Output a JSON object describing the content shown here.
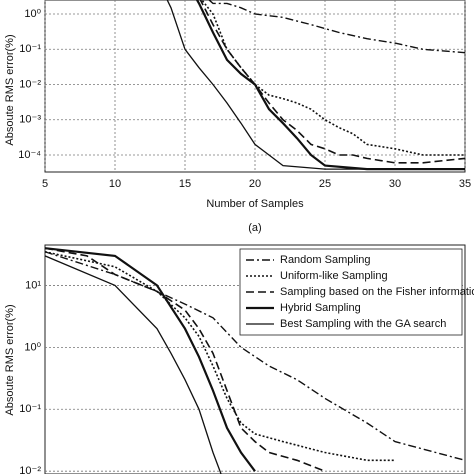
{
  "chart_data": [
    {
      "type": "line",
      "log_y": true,
      "grid": true,
      "x_label": "Number of Samples",
      "y_label": "Absoute RMS error(%)",
      "caption": "(a)",
      "xlim": [
        5,
        35
      ],
      "xticks": [
        5,
        10,
        15,
        20,
        25,
        30,
        35
      ],
      "ylim": [
        3.3e-05,
        2.5
      ],
      "yticks": [
        {
          "value": 0.0001,
          "label": "10⁻⁴"
        },
        {
          "value": 0.001,
          "label": "10⁻³"
        },
        {
          "value": 0.01,
          "label": "10⁻²"
        },
        {
          "value": 0.1,
          "label": "10⁻¹"
        },
        {
          "value": 1,
          "label": "10⁰"
        }
      ],
      "series": [
        {
          "color": "#111",
          "style": "dashdot",
          "x": [
            15,
            17,
            18,
            19,
            20,
            22,
            24,
            26,
            28,
            30,
            32,
            35
          ],
          "values": [
            10,
            2,
            2,
            1.5,
            1,
            0.8,
            0.5,
            0.3,
            0.2,
            0.15,
            0.1,
            0.08
          ]
        },
        {
          "color": "#111",
          "style": "dotted",
          "x": [
            15,
            17,
            18,
            19,
            20,
            21,
            22,
            23,
            24,
            25,
            26,
            27,
            28,
            30,
            32,
            35
          ],
          "values": [
            10,
            1,
            0.1,
            0.03,
            0.01,
            0.005,
            0.004,
            0.003,
            0.002,
            0.001,
            0.0006,
            0.0004,
            0.0002,
            0.00015,
            0.0001,
            0.0001
          ]
        },
        {
          "color": "#111",
          "style": "dashed",
          "x": [
            15,
            16,
            17,
            18,
            19,
            20,
            21,
            22,
            23,
            24,
            25,
            26,
            27,
            28,
            30,
            32,
            35
          ],
          "values": [
            10,
            3,
            0.5,
            0.1,
            0.03,
            0.01,
            0.003,
            0.001,
            0.0005,
            0.0002,
            0.00015,
            0.0001,
            0.0001,
            8e-05,
            6e-05,
            6e-05,
            8e-05
          ]
        },
        {
          "color": "#111",
          "style": "thick",
          "x": [
            15,
            16,
            17,
            18,
            19,
            20,
            21,
            22,
            23,
            24,
            25,
            28,
            32,
            35
          ],
          "values": [
            10,
            2,
            0.3,
            0.05,
            0.02,
            0.01,
            0.002,
            0.0008,
            0.0003,
            0.0001,
            5e-05,
            4e-05,
            4e-05,
            4e-05
          ]
        },
        {
          "color": "#111",
          "style": "solid",
          "x": [
            13,
            14,
            15,
            16,
            17,
            18,
            19,
            20,
            21,
            22,
            25,
            30,
            35
          ],
          "values": [
            10,
            1.5,
            0.1,
            0.03,
            0.01,
            0.003,
            0.0008,
            0.0002,
            0.0001,
            5e-05,
            4e-05,
            4e-05,
            4e-05
          ]
        }
      ]
    },
    {
      "type": "line",
      "log_y": true,
      "grid": true,
      "legend": "upper right",
      "y_label": "Absoute RMS error(%)",
      "xlim": [
        5,
        35
      ],
      "ylim": [
        0.009,
        45
      ],
      "yticks": [
        {
          "value": 0.01,
          "label": "10⁻²"
        },
        {
          "value": 0.1,
          "label": "10⁻¹"
        },
        {
          "value": 1,
          "label": "10⁰"
        },
        {
          "value": 10,
          "label": "10¹"
        }
      ],
      "series": [
        {
          "name": "Random Sampling",
          "color": "#111",
          "style": "dashdot",
          "x": [
            5,
            10,
            13,
            15,
            17,
            19,
            21,
            23,
            25,
            28,
            30,
            35
          ],
          "values": [
            35,
            15,
            8,
            5,
            3,
            1,
            0.5,
            0.3,
            0.15,
            0.06,
            0.03,
            0.015
          ]
        },
        {
          "name": "Uniform-like Sampling",
          "color": "#111",
          "style": "dotted",
          "x": [
            5,
            10,
            13,
            15,
            16,
            17,
            18,
            19,
            20,
            22,
            25,
            28,
            30
          ],
          "values": [
            35,
            20,
            8,
            3,
            1.5,
            0.5,
            0.15,
            0.06,
            0.04,
            0.03,
            0.02,
            0.015,
            0.015
          ]
        },
        {
          "name": "Sampling based on the Fisher information",
          "color": "#111",
          "style": "dashed",
          "x": [
            5,
            8,
            10,
            13,
            15,
            16,
            17,
            18,
            19,
            20,
            21,
            23,
            25
          ],
          "values": [
            40,
            30,
            15,
            8,
            4,
            2,
            0.8,
            0.2,
            0.05,
            0.03,
            0.02,
            0.015,
            0.01
          ]
        },
        {
          "name": "Hybrid Sampling",
          "color": "#111",
          "style": "thick",
          "x": [
            5,
            10,
            13,
            15,
            16,
            17,
            18,
            19,
            20
          ],
          "values": [
            40,
            30,
            10,
            2,
            0.7,
            0.2,
            0.05,
            0.02,
            0.01
          ]
        },
        {
          "name": "Best Sampling with the GA search",
          "color": "#111",
          "style": "solid",
          "x": [
            5,
            10,
            13,
            14,
            15,
            16,
            17,
            18
          ],
          "values": [
            30,
            10,
            2,
            0.8,
            0.3,
            0.1,
            0.02,
            0.005
          ]
        }
      ]
    }
  ]
}
